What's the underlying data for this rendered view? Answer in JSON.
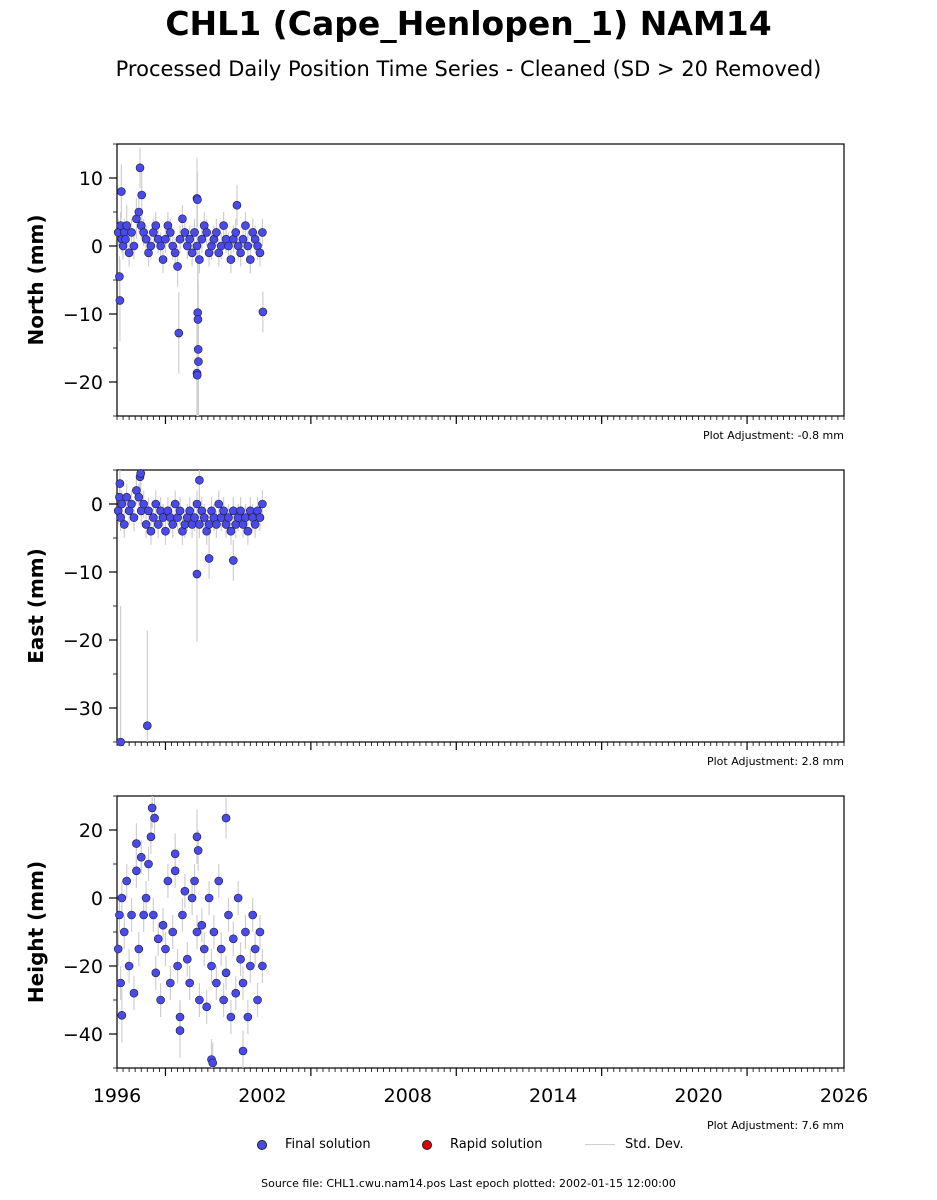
{
  "page": {
    "title": "CHL1 (Cape_Henlopen_1) NAM14",
    "subtitle": "Processed Daily Position Time Series - Cleaned (SD > 20 Removed)",
    "source_text": "Source file: CHL1.cwu.nam14.pos  Last epoch plotted: 2002-01-15 12:00:00"
  },
  "legend": {
    "final_label": "Final solution",
    "rapid_label": "Rapid solution",
    "std_label": "Std. Dev.",
    "final_color": "#4a4ae8",
    "rapid_color": "#dd0000",
    "std_color": "#cfcfcf"
  },
  "chart_data": [
    {
      "type": "scatter",
      "ylabel": "North (mm)",
      "adjustment": "Plot Adjustment: -0.8 mm",
      "xlim": [
        1996,
        2026
      ],
      "ylim": [
        -25,
        15
      ],
      "yticks": [
        10,
        0,
        -10,
        -20
      ],
      "ytick_labels": [
        "10",
        "0",
        "−10",
        "−20"
      ],
      "series": [
        {
          "x": [
            1996.05,
            1996.1,
            1996.15,
            1996.2,
            1996.25,
            1996.3,
            1996.35,
            1996.4,
            1996.5,
            1996.6,
            1996.7,
            1996.8,
            1996.9,
            1997.0,
            1997.1,
            1997.2,
            1997.3,
            1997.4,
            1997.5,
            1997.6,
            1997.7,
            1997.8,
            1997.9,
            1998.0,
            1998.1,
            1998.2,
            1998.3,
            1998.4,
            1998.5,
            1998.6,
            1998.7,
            1998.8,
            1998.9,
            1999.0,
            1999.1,
            1999.2,
            1999.3,
            1999.4,
            1999.5,
            1999.6,
            1999.7,
            1999.8,
            1999.9,
            2000.0,
            2000.1,
            2000.2,
            2000.3,
            2000.4,
            2000.5,
            2000.6,
            2000.7,
            2000.8,
            2000.9,
            2001.0,
            2001.1,
            2001.2,
            2001.3,
            2001.4,
            2001.5,
            2001.6,
            2001.7,
            2001.8,
            2001.9,
            2002.0,
            1996.12,
            1996.18,
            1996.95,
            1997.02,
            1998.55,
            1999.3,
            1999.32,
            1999.33,
            1999.34,
            1999.35,
            1999.36,
            1999.3,
            1999.31,
            2000.95,
            2002.02
          ],
          "y": [
            2,
            -4.5,
            3,
            1,
            0,
            2,
            1,
            3,
            -1,
            2,
            0,
            4,
            5,
            3,
            2,
            1,
            -1,
            0,
            2,
            3,
            1,
            0,
            -2,
            1,
            3,
            2,
            0,
            -1,
            -3,
            1,
            4,
            2,
            0,
            1,
            -1,
            2,
            0,
            -2,
            1,
            3,
            2,
            -1,
            0,
            1,
            2,
            -1,
            0,
            3,
            1,
            0,
            -2,
            1,
            2,
            0,
            -1,
            1,
            3,
            0,
            -2,
            2,
            1,
            0,
            -1,
            2,
            -8,
            8,
            11.5,
            7.5,
            -12.8,
            7,
            6.8,
            -9.8,
            -10.8,
            -15.2,
            -17,
            -18.7,
            -19,
            6,
            -9.7
          ],
          "std": [
            2,
            3,
            2,
            2,
            2,
            2,
            2,
            3,
            2,
            2,
            2,
            3,
            3,
            2,
            2,
            2,
            2,
            2,
            2,
            2,
            2,
            2,
            2,
            2,
            2,
            2,
            2,
            2,
            3,
            2,
            2,
            2,
            2,
            2,
            2,
            2,
            2,
            2,
            2,
            2,
            2,
            2,
            2,
            2,
            2,
            2,
            2,
            2,
            2,
            2,
            2,
            2,
            2,
            2,
            2,
            2,
            2,
            2,
            2,
            2,
            2,
            2,
            2,
            2,
            6,
            4,
            3,
            4,
            6,
            6,
            4,
            10,
            10,
            10,
            8,
            8,
            8,
            3,
            3
          ]
        }
      ]
    },
    {
      "type": "scatter",
      "ylabel": "East (mm)",
      "adjustment": "Plot Adjustment: 2.8 mm",
      "xlim": [
        1996,
        2026
      ],
      "ylim": [
        -35,
        5
      ],
      "yticks": [
        0,
        -10,
        -20,
        -30
      ],
      "ytick_labels": [
        "0",
        "−10",
        "−20",
        "−30"
      ],
      "series": [
        {
          "x": [
            1996.05,
            1996.1,
            1996.15,
            1996.2,
            1996.3,
            1996.4,
            1996.5,
            1996.6,
            1996.7,
            1996.8,
            1996.9,
            1997.0,
            1997.1,
            1997.2,
            1997.3,
            1997.4,
            1997.5,
            1997.6,
            1997.7,
            1997.8,
            1997.9,
            1998.0,
            1998.1,
            1998.2,
            1998.3,
            1998.4,
            1998.5,
            1998.6,
            1998.7,
            1998.8,
            1998.9,
            1999.0,
            1999.1,
            1999.2,
            1999.3,
            1999.4,
            1999.5,
            1999.6,
            1999.7,
            1999.8,
            1999.9,
            2000.0,
            2000.1,
            2000.2,
            2000.3,
            2000.4,
            2000.5,
            2000.6,
            2000.7,
            2000.8,
            2000.9,
            2001.0,
            2001.1,
            2001.2,
            2001.3,
            2001.4,
            2001.5,
            2001.6,
            2001.7,
            2001.8,
            2001.9,
            2002.0,
            1996.12,
            1996.95,
            1996.98,
            1999.3,
            1999.4,
            1999.8,
            2000.8,
            1996.15,
            1997.25
          ],
          "y": [
            -1,
            1,
            -2,
            0,
            -3,
            1,
            -1,
            0,
            -2,
            2,
            1,
            -1,
            0,
            -3,
            -1,
            -4,
            -2,
            0,
            -3,
            -1,
            -2,
            -4,
            -1,
            -2,
            -3,
            0,
            -2,
            -1,
            -4,
            -3,
            -2,
            -1,
            -3,
            -2,
            0,
            -3,
            -1,
            -2,
            -4,
            -3,
            -1,
            -2,
            -3,
            0,
            -2,
            -1,
            -3,
            -2,
            -4,
            -1,
            -3,
            -2,
            -1,
            -3,
            -2,
            -4,
            -1,
            -2,
            -3,
            -1,
            -2,
            0,
            3,
            4,
            4.5,
            -10.3,
            3.5,
            -8,
            -8.3,
            -35,
            -32.6
          ],
          "std": [
            2,
            2,
            2,
            2,
            2,
            2,
            2,
            2,
            2,
            2,
            2,
            2,
            2,
            2,
            2,
            2,
            2,
            2,
            2,
            2,
            2,
            2,
            2,
            2,
            2,
            2,
            2,
            2,
            2,
            2,
            2,
            2,
            2,
            2,
            2,
            2,
            2,
            2,
            2,
            2,
            2,
            2,
            2,
            2,
            2,
            2,
            2,
            2,
            2,
            2,
            2,
            2,
            2,
            2,
            2,
            2,
            2,
            2,
            2,
            2,
            2,
            2,
            2,
            3,
            3,
            10,
            3,
            3,
            3,
            20,
            14
          ]
        }
      ]
    },
    {
      "type": "scatter",
      "ylabel": "Height (mm)",
      "adjustment": "Plot Adjustment: 7.6 mm",
      "xlim": [
        1996,
        2026
      ],
      "ylim": [
        -50,
        30
      ],
      "yticks": [
        20,
        0,
        -20,
        -40
      ],
      "ytick_labels": [
        "20",
        "0",
        "−20",
        "−40"
      ],
      "xticks": [
        1996,
        2002,
        2008,
        2014,
        2020,
        2026
      ],
      "series": [
        {
          "x": [
            1996.05,
            1996.1,
            1996.15,
            1996.2,
            1996.3,
            1996.4,
            1996.5,
            1996.6,
            1996.7,
            1996.8,
            1996.9,
            1997.0,
            1997.1,
            1997.2,
            1997.3,
            1997.4,
            1997.5,
            1997.6,
            1997.7,
            1997.8,
            1997.9,
            1998.0,
            1998.1,
            1998.2,
            1998.3,
            1998.4,
            1998.5,
            1998.6,
            1998.7,
            1998.8,
            1998.9,
            1999.0,
            1999.1,
            1999.2,
            1999.3,
            1999.4,
            1999.5,
            1999.6,
            1999.7,
            1999.8,
            1999.9,
            2000.0,
            2000.1,
            2000.2,
            2000.3,
            2000.4,
            2000.5,
            2000.6,
            2000.7,
            2000.8,
            2000.9,
            2001.0,
            2001.1,
            2001.2,
            2001.3,
            2001.4,
            2001.5,
            2001.6,
            2001.7,
            2001.8,
            2001.9,
            2002.0,
            1996.2,
            1996.8,
            1997.45,
            1997.55,
            1998.4,
            1999.3,
            1999.35,
            1999.9,
            1999.95,
            2000.5,
            2001.2,
            1998.6
          ],
          "y": [
            -15,
            -5,
            -25,
            0,
            -10,
            5,
            -20,
            -5,
            -28,
            8,
            -15,
            12,
            -5,
            0,
            10,
            18,
            -5,
            -22,
            -12,
            -30,
            -8,
            -15,
            5,
            -25,
            -10,
            8,
            -20,
            -35,
            -5,
            2,
            -18,
            -25,
            0,
            5,
            -10,
            -30,
            -8,
            -15,
            -32,
            0,
            -20,
            -10,
            -25,
            5,
            -15,
            -30,
            -22,
            -5,
            -35,
            -12,
            -28,
            0,
            -18,
            -25,
            -10,
            -35,
            -20,
            -5,
            -15,
            -30,
            -10,
            -20,
            -34.5,
            16,
            26.5,
            23.5,
            13,
            18,
            14,
            -47.5,
            -48.5,
            23.5,
            -45,
            -39
          ],
          "std": [
            5,
            5,
            5,
            5,
            5,
            5,
            5,
            5,
            5,
            5,
            5,
            5,
            5,
            5,
            5,
            5,
            5,
            5,
            5,
            5,
            5,
            5,
            5,
            5,
            5,
            5,
            5,
            5,
            5,
            5,
            5,
            5,
            5,
            5,
            5,
            5,
            5,
            5,
            5,
            5,
            5,
            5,
            5,
            5,
            5,
            5,
            5,
            5,
            5,
            5,
            5,
            5,
            5,
            5,
            5,
            5,
            5,
            5,
            5,
            5,
            5,
            5,
            8,
            6,
            6,
            6,
            6,
            8,
            6,
            6,
            6,
            6,
            6,
            8
          ]
        }
      ]
    }
  ]
}
